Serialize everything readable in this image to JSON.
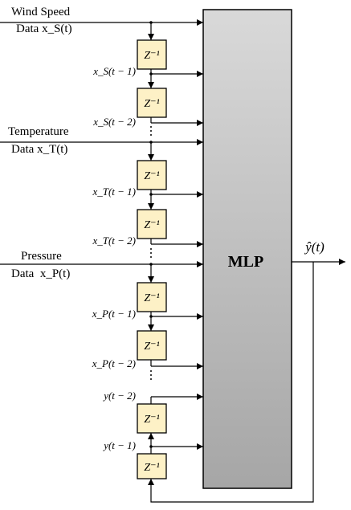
{
  "diagram": {
    "mlp_label": "MLP",
    "output_label": "ŷ(t)",
    "delay_label": "Z⁻¹",
    "inputs": {
      "wind": {
        "line1": "Wind Speed",
        "line2": "Data x_S(t)"
      },
      "temp": {
        "line1": "Temperature",
        "line2": "Data x_T(t)"
      },
      "pres": {
        "line1": "Pressure",
        "line2": "Data  x_P(t)"
      }
    },
    "signals": {
      "xs1": "x_S(t − 1)",
      "xs2": "x_S(t − 2)",
      "xt1": "x_T(t − 1)",
      "xt2": "x_T(t − 2)",
      "xp1": "x_P(t − 1)",
      "xp2": "x_P(t − 2)",
      "y2": "y(t − 2)",
      "y1": "y(t − 1)"
    },
    "colors": {
      "delay_fill": "#fdf1c6",
      "mlp_fill_light": "#d9d9d9",
      "mlp_fill_dark": "#a6a6a6",
      "stroke": "#000000"
    }
  }
}
